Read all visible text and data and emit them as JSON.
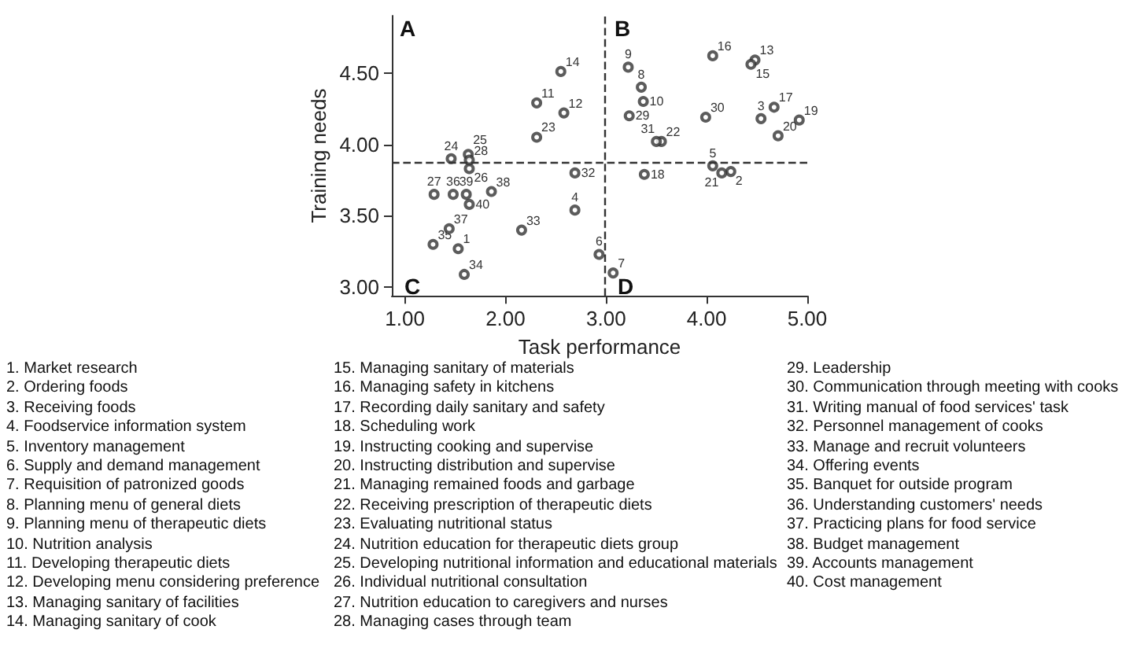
{
  "chart_data": {
    "type": "scatter",
    "xlabel": "Task performance",
    "ylabel": "Training needs",
    "xlim": [
      0.87,
      5.0
    ],
    "ylim": [
      2.94,
      4.9
    ],
    "xticks": [
      {
        "value": 1,
        "label": "1.00"
      },
      {
        "value": 2,
        "label": "2.00"
      },
      {
        "value": 3,
        "label": "3.00"
      },
      {
        "value": 4,
        "label": "4.00"
      },
      {
        "value": 5,
        "label": "5.00"
      }
    ],
    "yticks": [
      {
        "value": 3,
        "label": "3.00"
      },
      {
        "value": 3.5,
        "label": "3.50"
      },
      {
        "value": 4,
        "label": "4.00"
      },
      {
        "value": 4.5,
        "label": "4.50"
      }
    ],
    "marker": "circle",
    "grid": false,
    "series": [
      {
        "color": "#333333",
        "x": [
          1.53,
          4.24,
          4.54,
          2.69,
          4.06,
          2.93,
          3.07,
          3.35,
          3.22,
          3.37,
          2.31,
          2.58,
          4.48,
          2.55,
          4.44,
          4.06,
          4.67,
          3.38,
          4.92,
          4.71,
          4.15,
          3.55,
          2.31,
          1.46,
          1.63,
          1.64,
          1.29,
          1.64,
          3.23,
          3.99,
          3.5,
          2.69,
          2.16,
          1.59,
          1.28,
          1.48,
          1.44,
          1.86,
          1.61,
          1.64
        ],
        "values": [
          3.27,
          3.81,
          4.18,
          3.54,
          3.85,
          3.23,
          3.1,
          4.4,
          4.54,
          4.3,
          4.29,
          4.22,
          4.59,
          4.51,
          4.56,
          4.62,
          4.26,
          3.79,
          4.17,
          4.06,
          3.8,
          4.02,
          4.05,
          3.9,
          3.93,
          3.83,
          3.65,
          3.89,
          4.2,
          4.19,
          4.02,
          3.8,
          3.4,
          3.09,
          3.3,
          3.65,
          3.41,
          3.67,
          3.65,
          3.58
        ]
      }
    ],
    "ref_lines": [
      {
        "axis": "x",
        "value": 2.99,
        "line_style": "dashed"
      },
      {
        "axis": "y",
        "value": 3.87,
        "line_style": "dashed"
      }
    ],
    "annotations": [
      "A",
      "B",
      "C",
      "D",
      {
        "text": "1",
        "x": 1.53,
        "y": 3.27
      },
      {
        "text": "2",
        "x": 4.24,
        "y": 3.81
      },
      {
        "text": "3",
        "x": 4.54,
        "y": 4.18
      },
      {
        "text": "4",
        "x": 2.69,
        "y": 3.54
      },
      {
        "text": "5",
        "x": 4.06,
        "y": 3.85
      },
      {
        "text": "6",
        "x": 2.93,
        "y": 3.23
      },
      {
        "text": "7",
        "x": 3.07,
        "y": 3.1
      },
      {
        "text": "8",
        "x": 3.35,
        "y": 4.4
      },
      {
        "text": "9",
        "x": 3.22,
        "y": 4.54
      },
      {
        "text": "10",
        "x": 3.37,
        "y": 4.3
      },
      {
        "text": "11",
        "x": 2.31,
        "y": 4.29
      },
      {
        "text": "12",
        "x": 2.58,
        "y": 4.22
      },
      {
        "text": "13",
        "x": 4.48,
        "y": 4.59
      },
      {
        "text": "14",
        "x": 2.55,
        "y": 4.51
      },
      {
        "text": "15",
        "x": 4.44,
        "y": 4.56
      },
      {
        "text": "16",
        "x": 4.06,
        "y": 4.62
      },
      {
        "text": "17",
        "x": 4.67,
        "y": 4.26
      },
      {
        "text": "18",
        "x": 3.38,
        "y": 3.79
      },
      {
        "text": "19",
        "x": 4.92,
        "y": 4.17
      },
      {
        "text": "20",
        "x": 4.71,
        "y": 4.06
      },
      {
        "text": "21",
        "x": 4.15,
        "y": 3.8
      },
      {
        "text": "22",
        "x": 3.55,
        "y": 4.02
      },
      {
        "text": "23",
        "x": 2.31,
        "y": 4.05
      },
      {
        "text": "24",
        "x": 1.46,
        "y": 3.9
      },
      {
        "text": "25",
        "x": 1.63,
        "y": 3.93
      },
      {
        "text": "26",
        "x": 1.64,
        "y": 3.83
      },
      {
        "text": "27",
        "x": 1.29,
        "y": 3.65
      },
      {
        "text": "28",
        "x": 1.64,
        "y": 3.89
      },
      {
        "text": "29",
        "x": 3.23,
        "y": 4.2
      },
      {
        "text": "30",
        "x": 3.99,
        "y": 4.19
      },
      {
        "text": "31",
        "x": 3.5,
        "y": 4.02
      },
      {
        "text": "32",
        "x": 2.69,
        "y": 3.8
      },
      {
        "text": "33",
        "x": 2.16,
        "y": 3.4
      },
      {
        "text": "34",
        "x": 1.59,
        "y": 3.09
      },
      {
        "text": "35",
        "x": 1.28,
        "y": 3.3
      },
      {
        "text": "36",
        "x": 1.48,
        "y": 3.65
      },
      {
        "text": "37",
        "x": 1.44,
        "y": 3.41
      },
      {
        "text": "38",
        "x": 1.86,
        "y": 3.67
      },
      {
        "text": "39",
        "x": 1.61,
        "y": 3.65
      },
      {
        "text": "40",
        "x": 1.64,
        "y": 3.58
      },
      "1. Market research",
      "2. Ordering foods",
      "3. Receiving foods",
      "4. Foodservice information system",
      "5. Inventory management",
      "6. Supply and demand management",
      "7. Requisition of patronized goods",
      "8. Planning menu of general diets",
      "9. Planning menu of therapeutic diets",
      "10. Nutrition analysis",
      "11. Developing therapeutic diets",
      "12. Developing menu considering preference",
      "13. Managing sanitary of facilities",
      "14. Managing sanitary of cook",
      "15. Managing sanitary of materials",
      "16. Managing safety in kitchens",
      "17. Recording daily sanitary and safety",
      "18. Scheduling work",
      "19. Instructing cooking and supervise",
      "20. Instructing distribution and supervise",
      "21. Managing remained foods and garbage",
      "22. Receiving prescription of therapeutic diets",
      "23. Evaluating nutritional status",
      "24. Nutrition education for therapeutic diets group",
      "25. Developing nutritional information and educational materials",
      "26. Individual nutritional consultation",
      "27. Nutrition education to caregivers and nurses",
      "28. Managing cases through team",
      "29. Leadership",
      "30. Communication through meeting with cooks",
      "31. Writing manual of food services' task",
      "32. Personnel management of cooks",
      "33. Manage and recruit volunteers",
      "34. Offering events",
      "35. Banquet for outside program",
      "36. Understanding customers' needs",
      "37. Practicing plans for food service",
      "38. Budget management",
      "39. Accounts management",
      "40. Cost management"
    ]
  }
}
